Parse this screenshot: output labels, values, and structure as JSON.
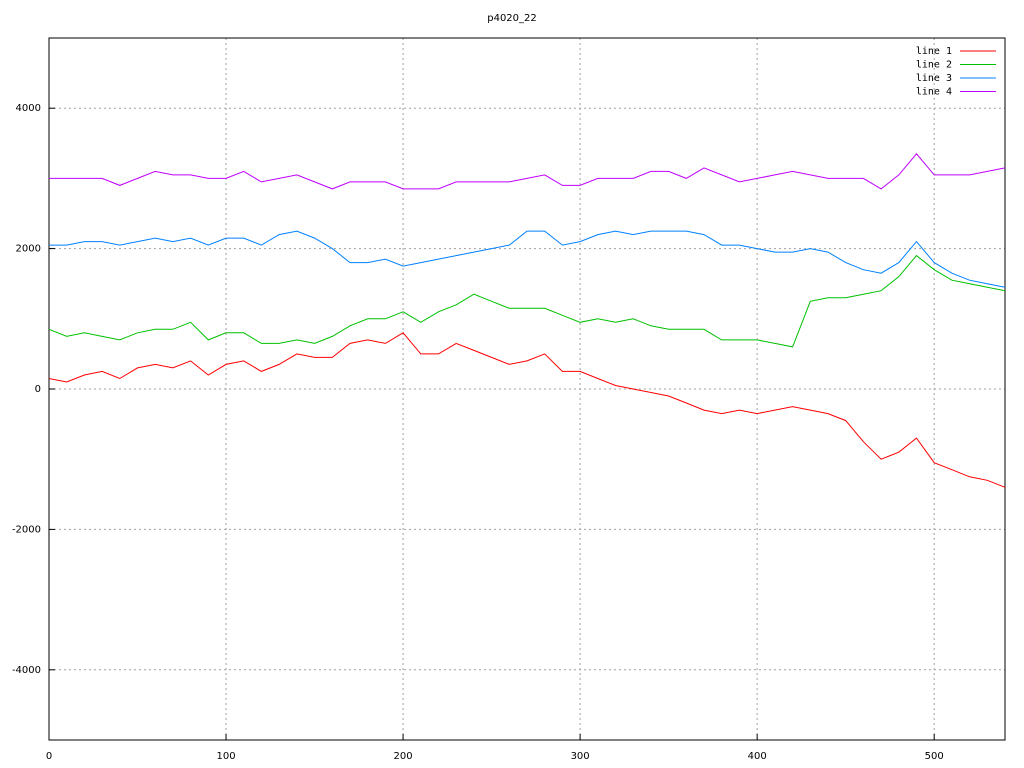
{
  "chart_data": {
    "type": "line",
    "title": "p4020_22",
    "x": [
      0,
      10,
      20,
      30,
      40,
      50,
      60,
      70,
      80,
      90,
      100,
      110,
      120,
      130,
      140,
      150,
      160,
      170,
      180,
      190,
      200,
      210,
      220,
      230,
      240,
      250,
      260,
      270,
      280,
      290,
      300,
      310,
      320,
      330,
      340,
      350,
      360,
      370,
      380,
      390,
      400,
      410,
      420,
      430,
      440,
      450,
      460,
      470,
      480,
      490,
      500,
      510,
      520,
      530,
      540
    ],
    "series": [
      {
        "name": "line 1",
        "color": "#ff0000",
        "values": [
          150,
          100,
          200,
          250,
          150,
          300,
          350,
          300,
          400,
          200,
          350,
          400,
          250,
          350,
          500,
          450,
          450,
          650,
          700,
          650,
          800,
          500,
          500,
          650,
          550,
          450,
          350,
          400,
          500,
          250,
          250,
          150,
          50,
          0,
          -50,
          -100,
          -200,
          -300,
          -350,
          -300,
          -350,
          -300,
          -250,
          -300,
          -350,
          -450,
          -750,
          -1000,
          -900,
          -700,
          -1050,
          -1150,
          -1250,
          -1300,
          -1400
        ]
      },
      {
        "name": "line 2",
        "color": "#00c000",
        "values": [
          850,
          750,
          800,
          750,
          700,
          800,
          850,
          850,
          950,
          700,
          800,
          800,
          650,
          650,
          700,
          650,
          750,
          900,
          1000,
          1000,
          1100,
          950,
          1100,
          1200,
          1350,
          1250,
          1150,
          1150,
          1150,
          1050,
          950,
          1000,
          950,
          1000,
          900,
          850,
          850,
          850,
          700,
          700,
          700,
          650,
          600,
          1250,
          1300,
          1300,
          1350,
          1400,
          1600,
          1900,
          1700,
          1550,
          1500,
          1450,
          1400
        ]
      },
      {
        "name": "line 3",
        "color": "#0080ff",
        "values": [
          2050,
          2050,
          2100,
          2100,
          2050,
          2100,
          2150,
          2100,
          2150,
          2050,
          2150,
          2150,
          2050,
          2200,
          2250,
          2150,
          2000,
          1800,
          1800,
          1850,
          1750,
          1800,
          1850,
          1900,
          1950,
          2000,
          2050,
          2250,
          2250,
          2050,
          2100,
          2200,
          2250,
          2200,
          2250,
          2250,
          2250,
          2200,
          2050,
          2050,
          2000,
          1950,
          1950,
          2000,
          1950,
          1800,
          1700,
          1650,
          1800,
          2100,
          1800,
          1650,
          1550,
          1500,
          1450
        ]
      },
      {
        "name": "line 4",
        "color": "#c000ff",
        "values": [
          3000,
          3000,
          3000,
          3000,
          2900,
          3000,
          3100,
          3050,
          3050,
          3000,
          3000,
          3100,
          2950,
          3000,
          3050,
          2950,
          2850,
          2950,
          2950,
          2950,
          2850,
          2850,
          2850,
          2950,
          2950,
          2950,
          2950,
          3000,
          3050,
          2900,
          2900,
          3000,
          3000,
          3000,
          3100,
          3100,
          3000,
          3150,
          3050,
          2950,
          3000,
          3050,
          3100,
          3050,
          3000,
          3000,
          3000,
          2850,
          3050,
          3350,
          3050,
          3050,
          3050,
          3100,
          3150
        ]
      }
    ],
    "xlim": [
      0,
      540
    ],
    "xticks": [
      0,
      100,
      200,
      300,
      400,
      500
    ],
    "ylim": [
      -5000,
      5000
    ],
    "yticks": [
      -4000,
      -2000,
      0,
      2000,
      4000
    ],
    "grid": true,
    "legend": "top-right"
  }
}
